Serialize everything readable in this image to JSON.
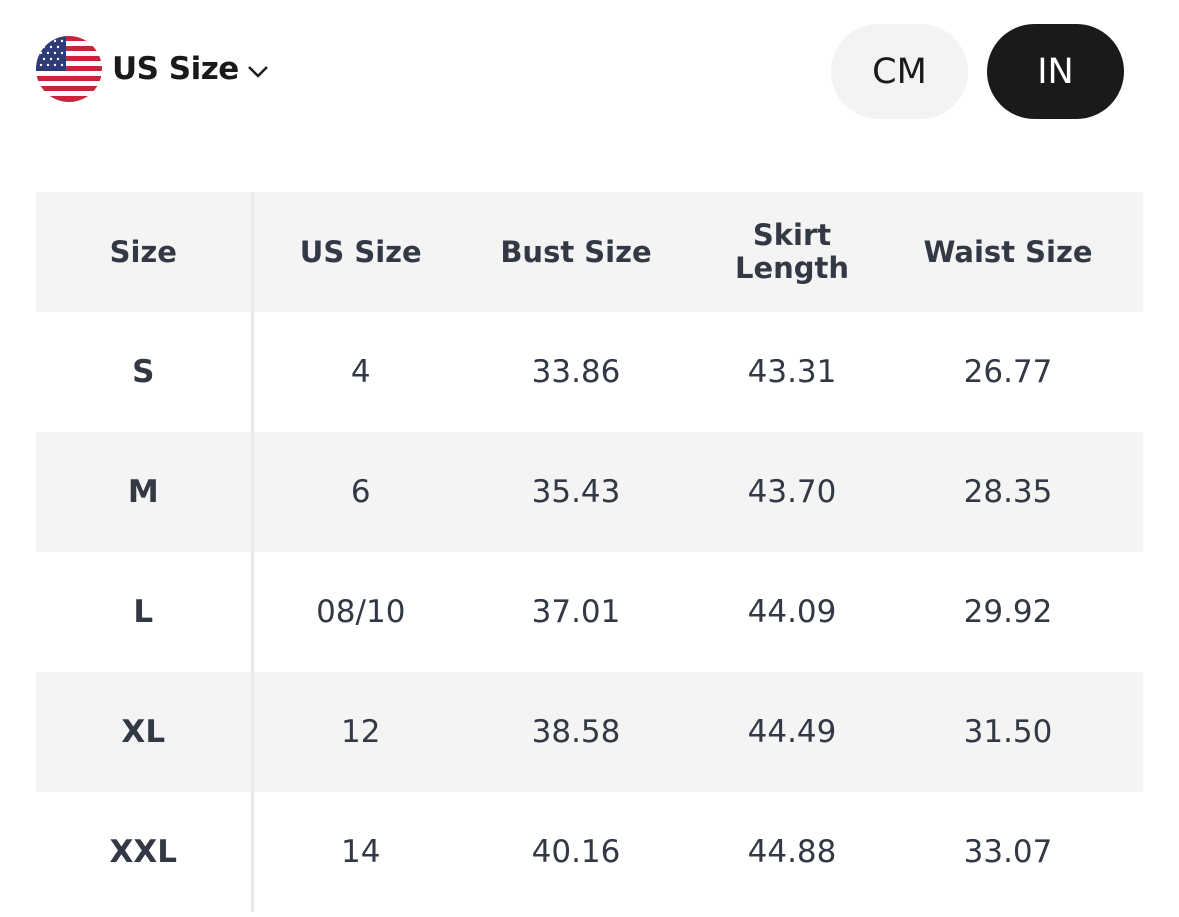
{
  "region_selector": {
    "label": "US Size",
    "flag_icon": "us-flag-icon",
    "chevron_icon": "chevron-down-icon"
  },
  "unit_toggle": {
    "options": [
      "CM",
      "IN"
    ],
    "selected": "IN"
  },
  "colors": {
    "text": "#333845",
    "header_bg": "#f4f4f4",
    "selected_pill": "#1a1a1a",
    "unselected_pill": "#f3f3f3"
  },
  "table": {
    "headers": [
      "Size",
      "US Size",
      "Bust Size",
      "Skirt Length",
      "Waist Size"
    ],
    "rows": [
      [
        "S",
        "4",
        "33.86",
        "43.31",
        "26.77"
      ],
      [
        "M",
        "6",
        "35.43",
        "43.70",
        "28.35"
      ],
      [
        "L",
        "08/10",
        "37.01",
        "44.09",
        "29.92"
      ],
      [
        "XL",
        "12",
        "38.58",
        "44.49",
        "31.50"
      ],
      [
        "XXL",
        "14",
        "40.16",
        "44.88",
        "33.07"
      ]
    ]
  }
}
